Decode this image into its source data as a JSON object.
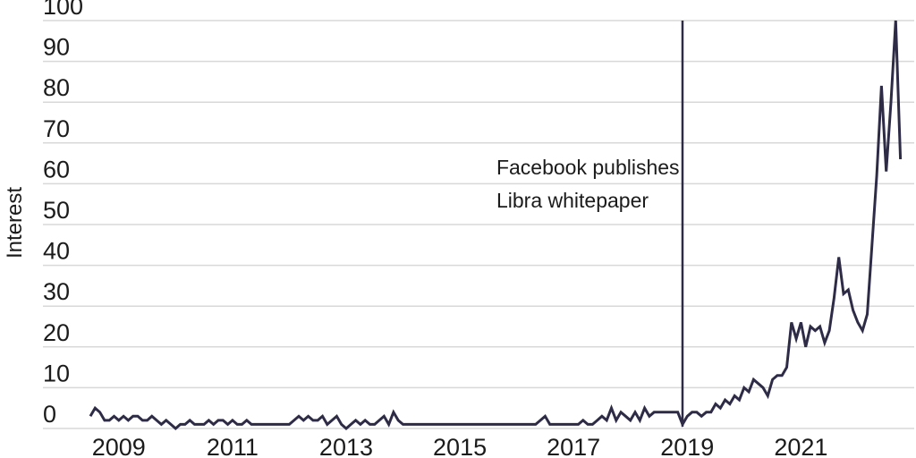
{
  "figure": {
    "background": "#ffffff",
    "line_color": "#2e2b47",
    "grid_color": "#d8d8d8",
    "text_color": "#1b1b1b"
  },
  "chart_data": {
    "type": "line",
    "title": "",
    "xlabel": "",
    "ylabel": "Interest",
    "ylim": [
      0,
      100
    ],
    "y_ticks": [
      0,
      10,
      20,
      30,
      40,
      50,
      60,
      70,
      80,
      90,
      100
    ],
    "x_ticks": [
      "2009",
      "2011",
      "2013",
      "2015",
      "2017",
      "2019",
      "2021"
    ],
    "grid": "horizontal",
    "legend": "none",
    "series": [
      {
        "name": "Interest",
        "frequency": "monthly",
        "start_month": "2009-01",
        "end_month": "2023-04",
        "values": [
          3,
          5,
          4,
          2,
          2,
          3,
          2,
          3,
          2,
          3,
          3,
          2,
          2,
          3,
          2,
          1,
          2,
          1,
          0,
          1,
          1,
          2,
          1,
          1,
          1,
          2,
          1,
          2,
          2,
          1,
          2,
          1,
          1,
          2,
          1,
          1,
          1,
          1,
          1,
          1,
          1,
          1,
          1,
          2,
          3,
          2,
          3,
          2,
          2,
          3,
          1,
          2,
          3,
          1,
          0,
          1,
          2,
          1,
          2,
          1,
          1,
          2,
          3,
          1,
          4,
          2,
          1,
          1,
          1,
          1,
          1,
          1,
          1,
          1,
          1,
          1,
          1,
          1,
          1,
          1,
          1,
          1,
          1,
          1,
          1,
          1,
          1,
          1,
          1,
          1,
          1,
          1,
          1,
          1,
          1,
          2,
          3,
          1,
          1,
          1,
          1,
          1,
          1,
          1,
          2,
          1,
          1,
          2,
          3,
          2,
          5,
          2,
          4,
          3,
          2,
          4,
          2,
          5,
          3,
          4,
          4,
          4,
          4,
          4,
          4,
          1,
          3,
          4,
          4,
          3,
          4,
          4,
          6,
          5,
          7,
          6,
          8,
          7,
          10,
          9,
          12,
          11,
          10,
          8,
          12,
          13,
          13,
          15,
          26,
          22,
          26,
          20,
          25,
          24,
          25,
          21,
          24,
          32,
          42,
          33,
          34,
          29,
          26,
          24,
          28,
          45,
          62,
          84,
          63,
          80,
          100,
          66
        ]
      }
    ],
    "annotation": {
      "month": "2019-06",
      "label_lines": [
        "Facebook publishes",
        "Libra whitepaper"
      ]
    }
  }
}
